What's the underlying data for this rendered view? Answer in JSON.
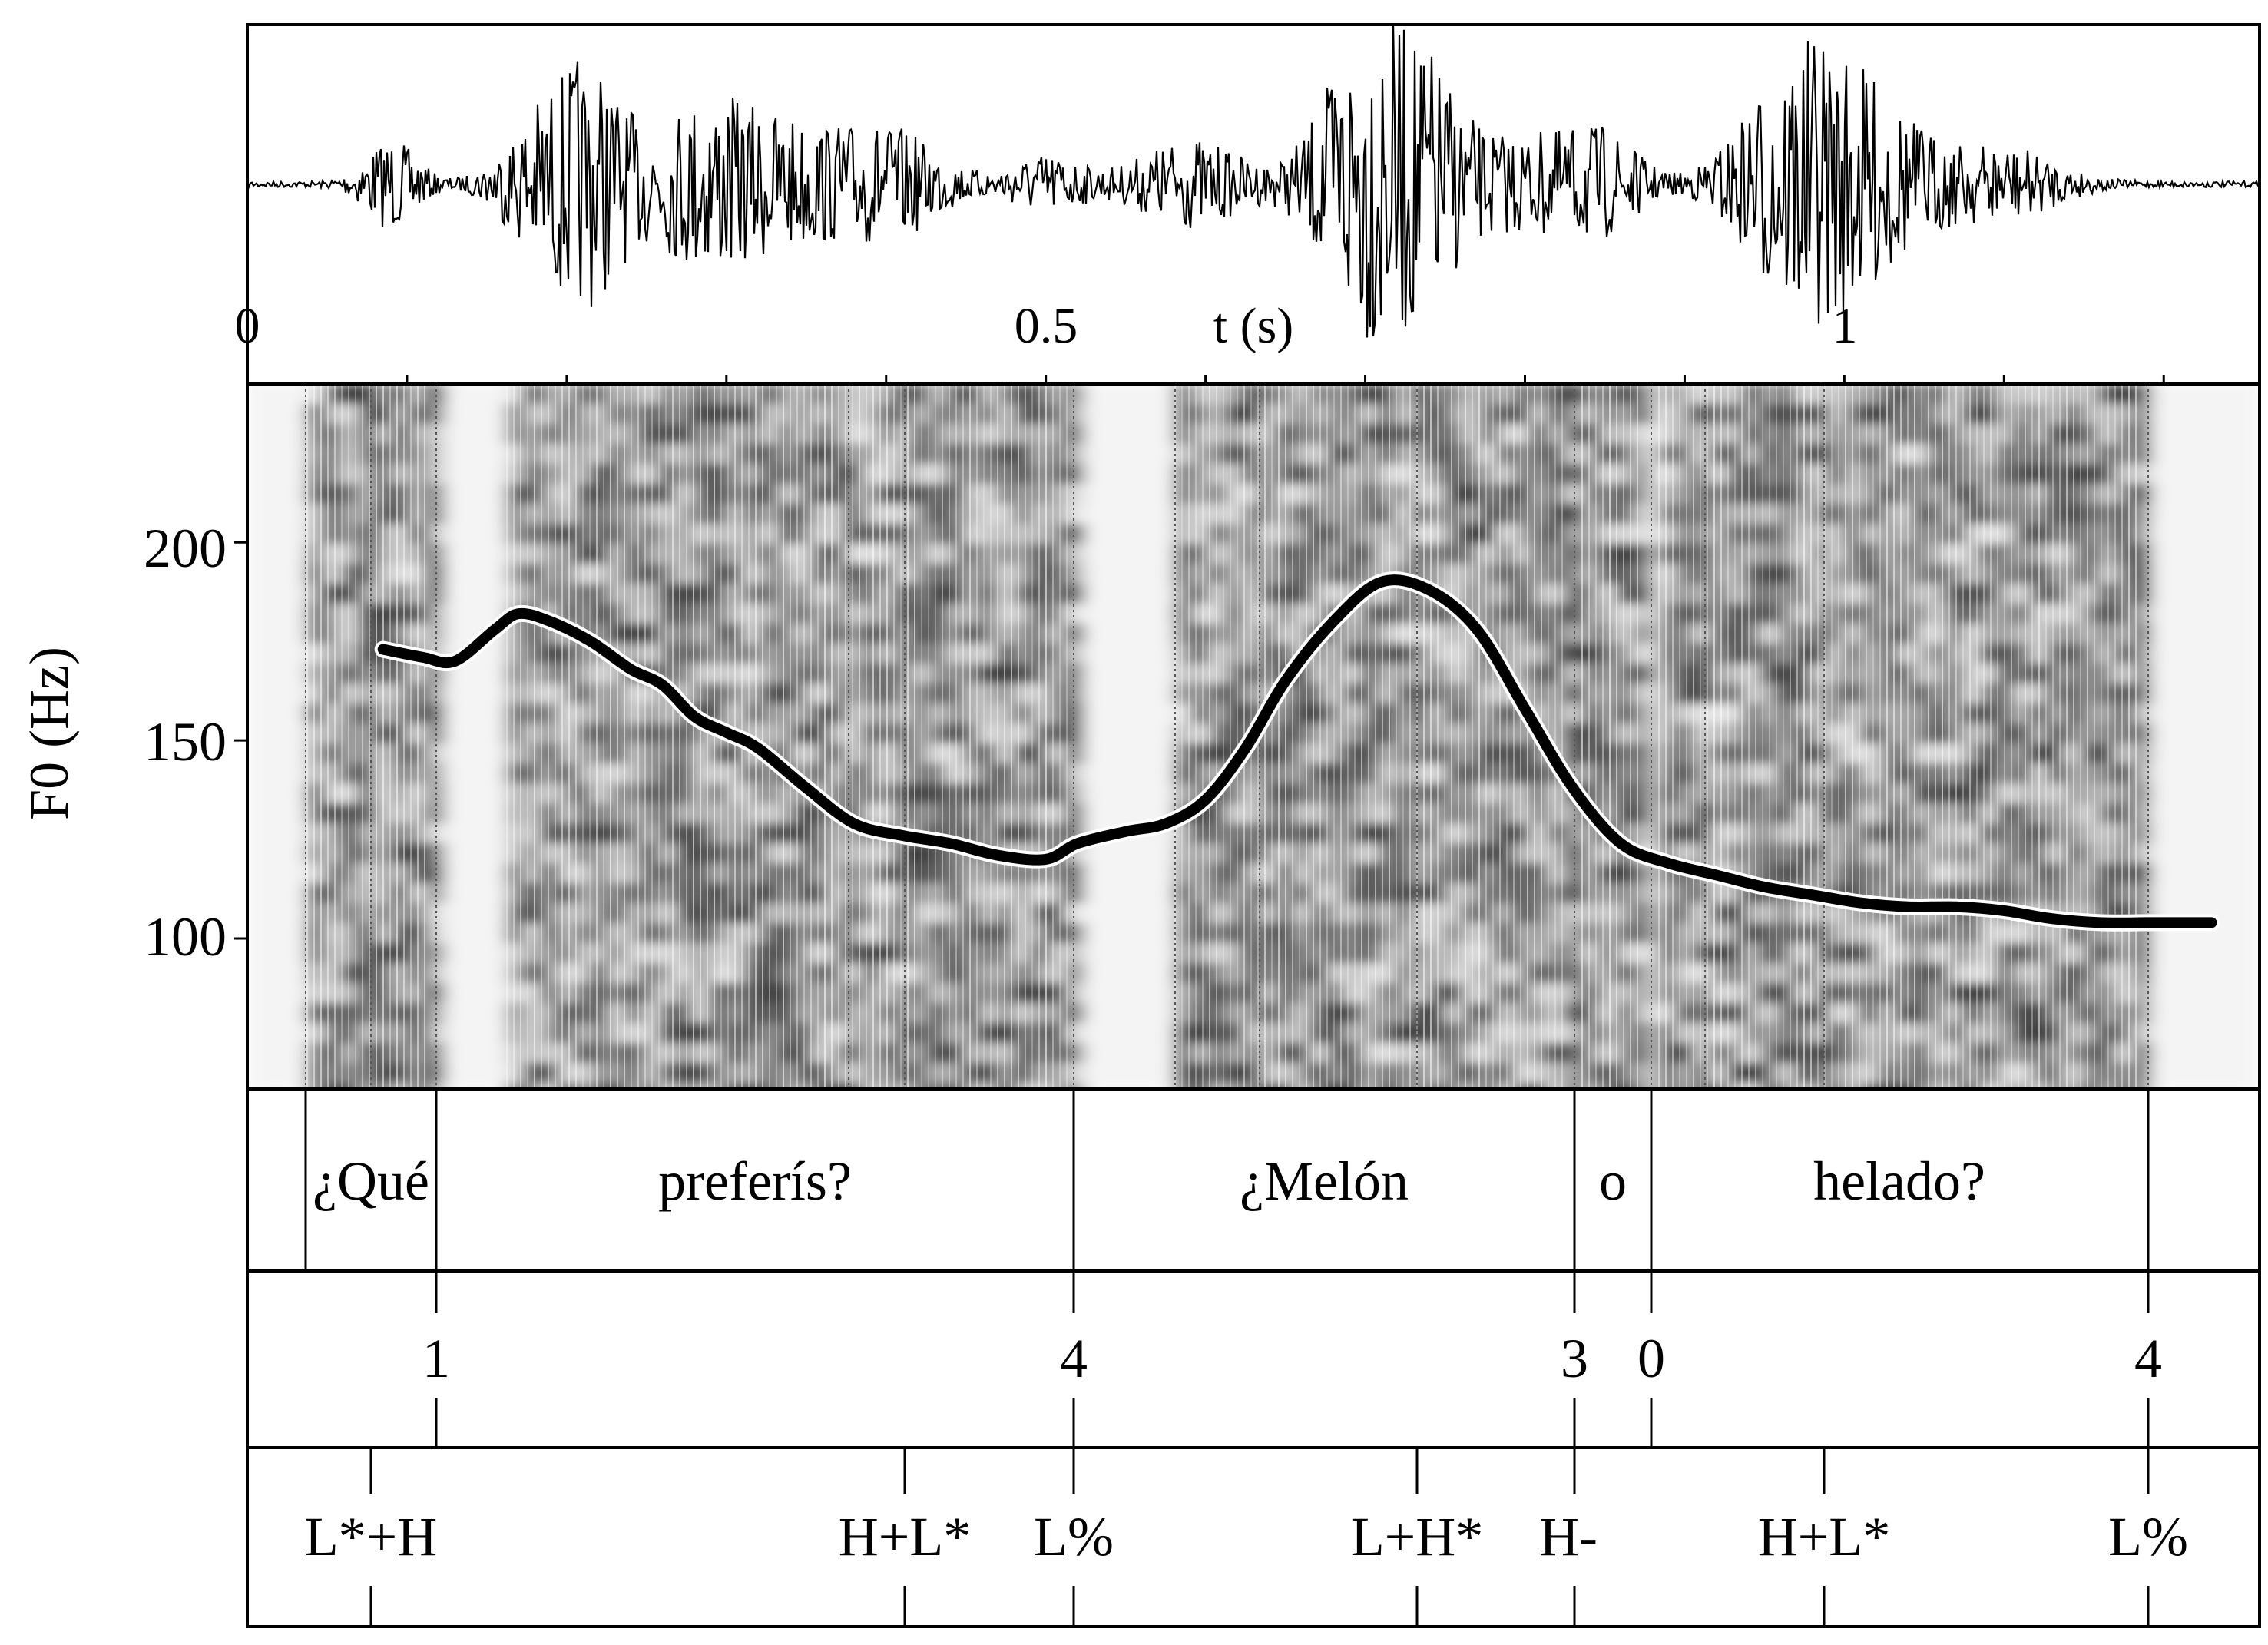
{
  "waveform": {
    "time_unit_label": "t (s)",
    "time_ticks": [
      "0",
      "0.5",
      "1"
    ]
  },
  "pitch_panel": {
    "y_axis_label": "F0 (Hz)",
    "y_ticks": [
      "200",
      "150",
      "100"
    ]
  },
  "chart_data": {
    "type": "line",
    "title": "",
    "xlabel": "t (s)",
    "ylabel": "F0 (Hz)",
    "xlim": [
      0,
      1.26
    ],
    "ylim": [
      62,
      240
    ],
    "series": [
      {
        "name": "",
        "x": [
          0.085,
          0.11,
          0.13,
          0.155,
          0.17,
          0.19,
          0.215,
          0.24,
          0.26,
          0.28,
          0.3,
          0.32,
          0.35,
          0.38,
          0.41,
          0.44,
          0.47,
          0.5,
          0.52,
          0.55,
          0.575,
          0.6,
          0.625,
          0.65,
          0.68,
          0.71,
          0.74,
          0.77,
          0.8,
          0.83,
          0.86,
          0.89,
          0.92,
          0.95,
          0.98,
          1.01,
          1.04,
          1.07,
          1.1,
          1.13,
          1.16,
          1.19,
          1.21,
          1.23
        ],
        "y": [
          173,
          171,
          170,
          178,
          182,
          180,
          175,
          168,
          164,
          156,
          152,
          148,
          138,
          129,
          126,
          124,
          121,
          120,
          124,
          127,
          129,
          135,
          148,
          165,
          180,
          190,
          188,
          178,
          158,
          138,
          124,
          119,
          116,
          113,
          111,
          109,
          108,
          108,
          107,
          105,
          104,
          104,
          104,
          104
        ]
      }
    ]
  },
  "tiers": {
    "words": [
      "¿Qué",
      "preferís?",
      "¿Melón",
      "o",
      "helado?"
    ],
    "break_indices": [
      "1",
      "4",
      "3",
      "0",
      "4"
    ],
    "tones": [
      "L*+H",
      "H+L*",
      "L%",
      "L+H*",
      "H-",
      "H+L*",
      "L%"
    ]
  }
}
